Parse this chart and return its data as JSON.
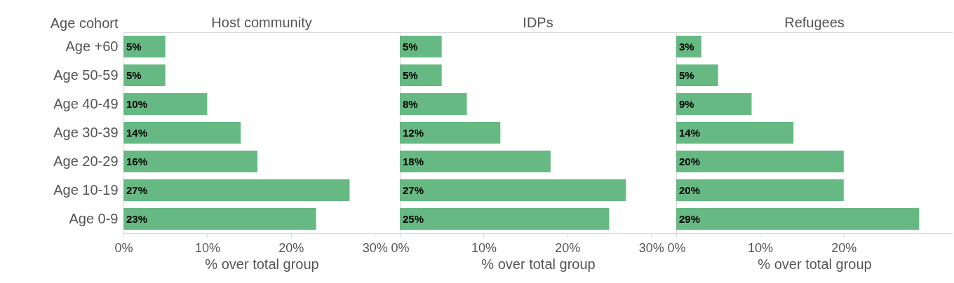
{
  "chart_data": [
    {
      "type": "bar",
      "orientation": "horizontal",
      "title": "Host community",
      "xlabel": "% over total group",
      "ylabel": "Age cohort",
      "categories": [
        "Age +60",
        "Age 50-59",
        "Age 40-49",
        "Age 30-39",
        "Age 20-29",
        "Age 10-19",
        "Age 0-9"
      ],
      "values": [
        5,
        5,
        10,
        14,
        16,
        27,
        23
      ],
      "value_labels": [
        "5%",
        "5%",
        "10%",
        "14%",
        "16%",
        "27%",
        "23%"
      ],
      "color": "#66b983",
      "xlim": [
        0,
        33
      ],
      "xticks": [
        {
          "value": 0,
          "label": "0%"
        },
        {
          "value": 10,
          "label": "10%"
        },
        {
          "value": 20,
          "label": "20%"
        },
        {
          "value": 30,
          "label": "30%"
        }
      ]
    },
    {
      "type": "bar",
      "orientation": "horizontal",
      "title": "IDPs",
      "xlabel": "% over total group",
      "categories": [
        "Age +60",
        "Age 50-59",
        "Age 40-49",
        "Age 30-39",
        "Age 20-29",
        "Age 10-19",
        "Age 0-9"
      ],
      "values": [
        5,
        5,
        8,
        12,
        18,
        27,
        25
      ],
      "value_labels": [
        "5%",
        "5%",
        "8%",
        "12%",
        "18%",
        "27%",
        "25%"
      ],
      "color": "#66b983",
      "xlim": [
        0,
        33
      ],
      "xticks": [
        {
          "value": 0,
          "label": "0%"
        },
        {
          "value": 10,
          "label": "10%"
        },
        {
          "value": 20,
          "label": "20%"
        },
        {
          "value": 30,
          "label": "30%"
        }
      ],
      "tick_labels": "x"
    },
    {
      "type": "bar",
      "orientation": "horizontal",
      "title": "Refugees",
      "xlabel": "% over total group",
      "categories": [
        "Age +60",
        "Age 50-59",
        "Age 40-49",
        "Age 30-39",
        "Age 20-29",
        "Age 10-19",
        "Age 0-9"
      ],
      "values": [
        3,
        5,
        9,
        14,
        20,
        20,
        29
      ],
      "value_labels": [
        "3%",
        "5%",
        "9%",
        "14%",
        "20%",
        "20%",
        "29%"
      ],
      "color": "#66b983",
      "xlim": [
        0,
        33
      ],
      "xticks": [
        {
          "value": 0,
          "label": "0%"
        },
        {
          "value": 10,
          "label": "10%"
        },
        {
          "value": 20,
          "label": "20%"
        }
      ],
      "tick_labels": "x"
    }
  ]
}
